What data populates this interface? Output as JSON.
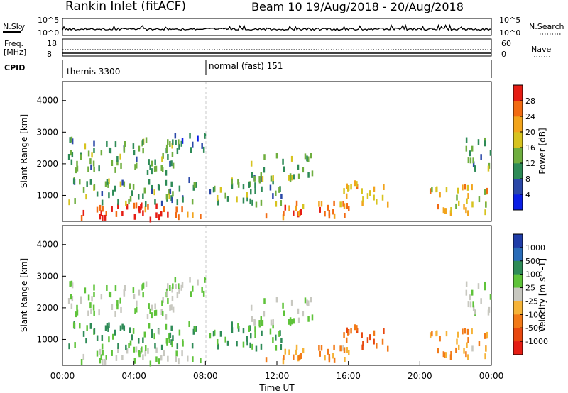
{
  "chart_data": {
    "type": "heatmap",
    "title": "Rankin Inlet (fitACF)",
    "subtitle": "Beam 10  19/Aug/2018 - 20/Aug/2018",
    "xlabel": "Time UT",
    "xticks": [
      "00:00",
      "04:00",
      "08:00",
      "12:00",
      "16:00",
      "20:00",
      "00:00"
    ],
    "xlim": [
      0,
      24
    ],
    "top_panels": {
      "nsky_label": "N.Sky",
      "nsky_ticks": [
        "10^5",
        "10^0"
      ],
      "nsearch_label": "N.Search",
      "nsearch_ticks": [
        "10^5",
        "10^0"
      ],
      "freq_label_1": "Freq.",
      "freq_label_2": "[MHz]",
      "freq_ticks": [
        "18",
        "8"
      ],
      "nave_label": "Nave",
      "nave_ticks": [
        "60",
        "0"
      ],
      "cpid_label": "CPID",
      "cpid_modes": [
        {
          "label": "themis 3300",
          "start": 0,
          "end": 8
        },
        {
          "label": "normal (fast) 151",
          "start": 8,
          "end": 24
        }
      ]
    },
    "panels": [
      {
        "name": "Power",
        "ylabel": "Slant Range [km]",
        "yticks": [
          "1000",
          "2000",
          "3000",
          "4000"
        ],
        "ylim": [
          180,
          4600
        ],
        "colorbar_label": "Power [dB]",
        "colorbar_ticks": [
          "4",
          "8",
          "12",
          "16",
          "20",
          "24",
          "28"
        ],
        "colorbar_colors": [
          "#0b1fe6",
          "#2b48a8",
          "#2e8b57",
          "#6fae3f",
          "#d7c31f",
          "#f2a41c",
          "#f26b12",
          "#e51d14"
        ]
      },
      {
        "name": "Velocity",
        "ylabel": "Slant Range [km]",
        "yticks": [
          "1000",
          "2000",
          "3000",
          "4000"
        ],
        "ylim": [
          180,
          4600
        ],
        "colorbar_label": "Velocity [m s^-1]",
        "colorbar_ticks": [
          "1000",
          "500",
          "100",
          "25",
          "-25",
          "-100",
          "-500",
          "-1000"
        ],
        "colorbar_colors": [
          "#1f3da8",
          "#2a6cb8",
          "#2e8b57",
          "#5fc33a",
          "#c8c8c0",
          "#f5b338",
          "#f27a18",
          "#e8480f",
          "#e51d14"
        ]
      }
    ],
    "echo_regions": [
      {
        "t0": 0.3,
        "t1": 7.8,
        "r0": 230,
        "r1": 700,
        "power": 28,
        "vel": 25
      },
      {
        "t0": 0.3,
        "t1": 7.5,
        "r0": 700,
        "r1": 1500,
        "power": 12,
        "vel": 100
      },
      {
        "t0": 0.3,
        "t1": 6.5,
        "r0": 1700,
        "r1": 2800,
        "power": 12,
        "vel": 25
      },
      {
        "t0": 5.8,
        "t1": 8.0,
        "r0": 2400,
        "r1": 2900,
        "power": 8,
        "vel": 25
      },
      {
        "t0": 8.2,
        "t1": 12.5,
        "r0": 700,
        "r1": 1500,
        "power": 12,
        "vel": 100
      },
      {
        "t0": 10.5,
        "t1": 14.0,
        "r0": 1500,
        "r1": 2300,
        "power": 12,
        "vel": 25
      },
      {
        "t0": 11.0,
        "t1": 16.0,
        "r0": 300,
        "r1": 800,
        "power": 24,
        "vel": -100
      },
      {
        "t0": 15.5,
        "t1": 18.2,
        "r0": 700,
        "r1": 1400,
        "power": 20,
        "vel": -500
      },
      {
        "t0": 20.5,
        "t1": 23.8,
        "r0": 400,
        "r1": 1300,
        "power": 20,
        "vel": -100
      },
      {
        "t0": 22.5,
        "t1": 24.0,
        "r0": 1800,
        "r1": 2800,
        "power": 12,
        "vel": 25
      }
    ]
  }
}
